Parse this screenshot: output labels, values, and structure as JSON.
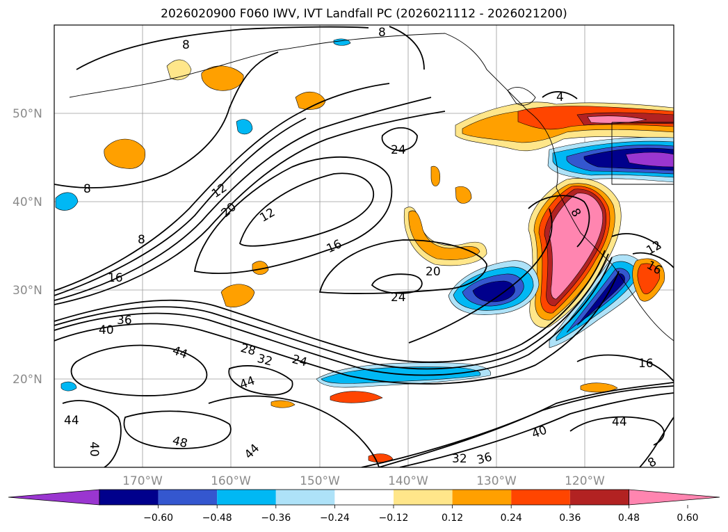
{
  "title": "2026020900 F060 IWV, IVT Landfall PC (2026021112 - 2026021200)",
  "map": {
    "lat_labels": [
      "50°N",
      "40°N",
      "30°N",
      "20°N"
    ],
    "lon_labels": [
      "170°W",
      "160°W",
      "150°W",
      "140°W",
      "130°W",
      "120°W"
    ],
    "contour_labels": [
      "8",
      "8",
      "8",
      "8",
      "4",
      "24",
      "12",
      "20",
      "12",
      "16",
      "16",
      "20",
      "24",
      "36",
      "40",
      "44",
      "28",
      "32",
      "24",
      "44",
      "44",
      "48",
      "40",
      "44",
      "32",
      "36",
      "40",
      "44",
      "16",
      "8",
      "12",
      "16",
      "8"
    ]
  },
  "colorbar": {
    "ticks": [
      "−0.60",
      "−0.48",
      "−0.36",
      "−0.24",
      "−0.12",
      "0.12",
      "0.24",
      "0.36",
      "0.48",
      "0.60"
    ],
    "colors": [
      "#9a36d0",
      "#00008c",
      "#3457cf",
      "#00b8f4",
      "#aee2f8",
      "#ffffff",
      "#ffe68a",
      "#ffa000",
      "#ff4500",
      "#b22222",
      "#ff85b0"
    ]
  }
}
